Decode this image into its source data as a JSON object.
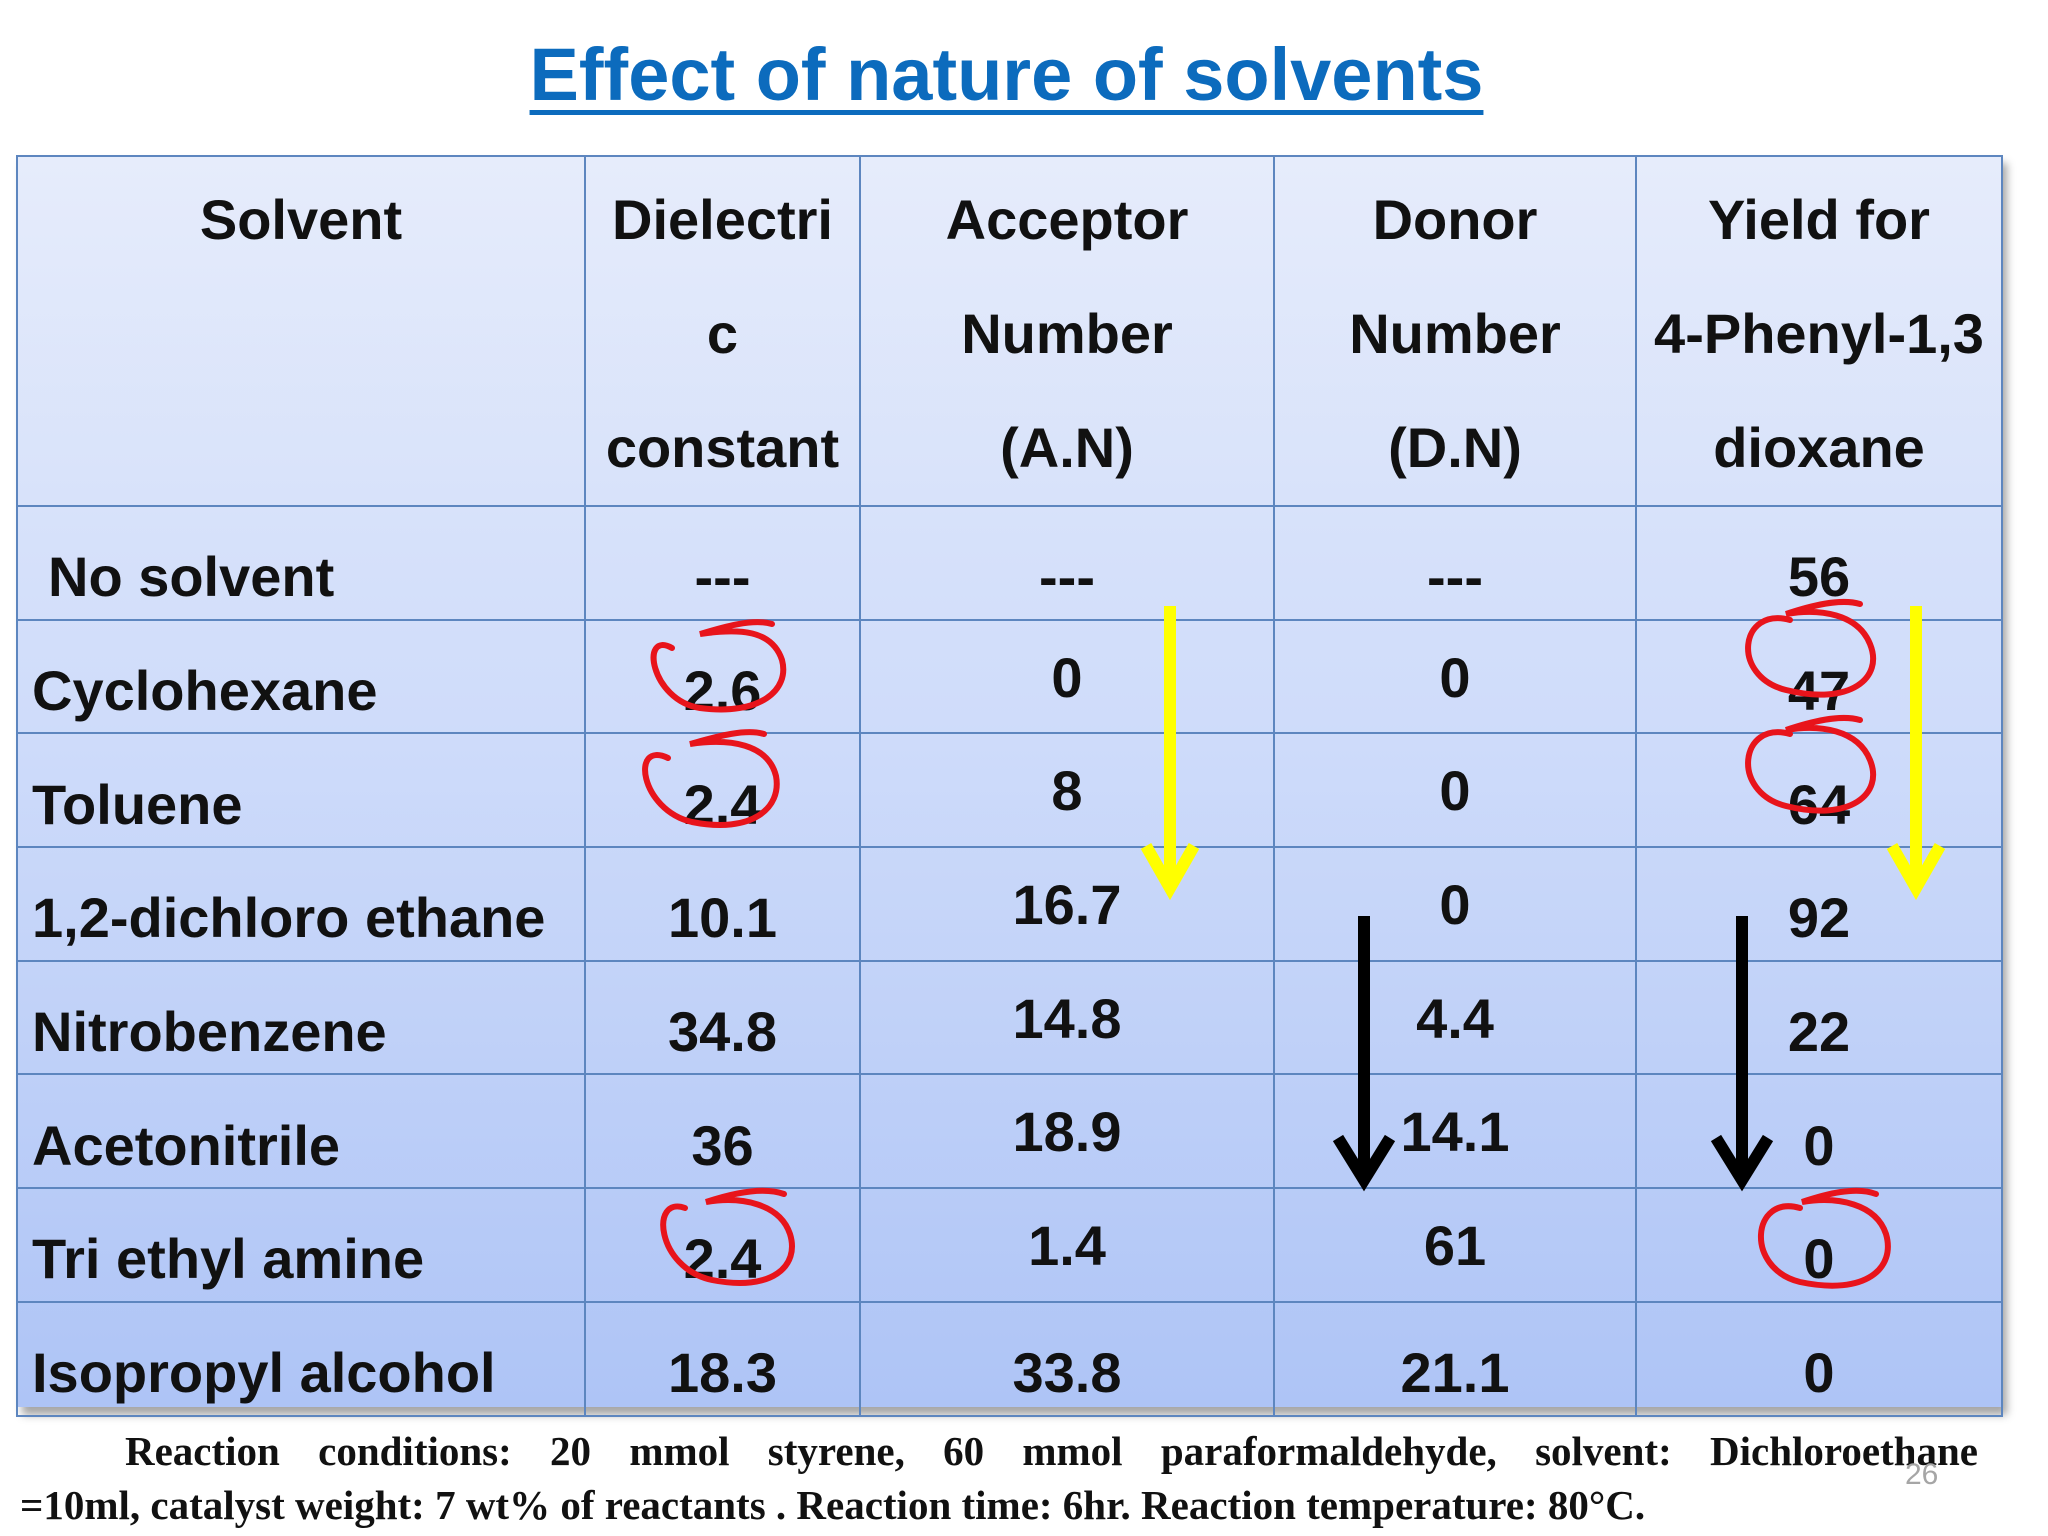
{
  "title": "Effect of nature of solvents",
  "table": {
    "headers": [
      [
        "Solvent",
        "",
        ""
      ],
      [
        "Dielectri",
        "c",
        "constant"
      ],
      [
        "Acceptor",
        "Number",
        "(A.N)"
      ],
      [
        "Donor",
        "Number",
        "(D.N)"
      ],
      [
        "Yield for",
        "4-Phenyl-1,3",
        "dioxane"
      ]
    ],
    "rows": [
      {
        "solvent": "No solvent",
        "dielectric": "---",
        "acceptor": "---",
        "donor": "---",
        "yield": "56"
      },
      {
        "solvent": "Cyclohexane",
        "dielectric": "2.6",
        "acceptor": "0",
        "donor": "0",
        "yield": "47"
      },
      {
        "solvent": "Toluene",
        "dielectric": "2.4",
        "acceptor": "8",
        "donor": "0",
        "yield": "64"
      },
      {
        "solvent": "1,2-dichloro ethane",
        "dielectric": "10.1",
        "acceptor": "16.7",
        "donor": "0",
        "yield": "92"
      },
      {
        "solvent": "Nitrobenzene",
        "dielectric": "34.8",
        "acceptor": "14.8",
        "donor": "4.4",
        "yield": "22"
      },
      {
        "solvent": "Acetonitrile",
        "dielectric": "36",
        "acceptor": "18.9",
        "donor": "14.1",
        "yield": "0"
      },
      {
        "solvent": "Tri ethyl amine",
        "dielectric": "2.4",
        "acceptor": "1.4",
        "donor": "61",
        "yield": "0"
      },
      {
        "solvent": "Isopropyl alcohol",
        "dielectric": "18.3",
        "acceptor": "33.8",
        "donor": "21.1",
        "yield": "0"
      }
    ]
  },
  "footnote": {
    "line1": "Reaction conditions: 20 mmol styrene, 60 mmol paraformaldehyde, solvent: Dichloroethane",
    "line2": "=10ml, catalyst weight: 7 wt% of reactants . Reaction time: 6hr. Reaction  temperature: 80°C."
  },
  "page_number": "26",
  "colors": {
    "title": "#0c6bbd",
    "grid": "#5d86bf",
    "annotation_red": "#e8141b",
    "annotation_yellow": "#ffff00",
    "annotation_black": "#000000"
  }
}
